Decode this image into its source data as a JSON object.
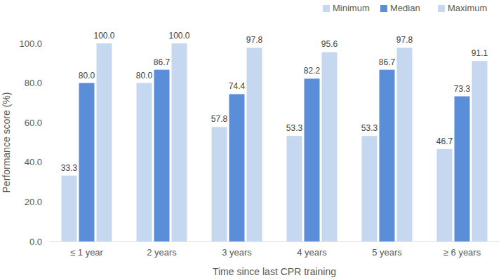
{
  "chart_data": {
    "type": "bar",
    "categories": [
      "≤ 1 year",
      "2 years",
      "3 years",
      "4 years",
      "5 years",
      "≥ 6 years"
    ],
    "series": [
      {
        "name": "Minimum",
        "color": "#c6d7f0",
        "values": [
          33.3,
          80.0,
          57.8,
          53.3,
          53.3,
          46.7
        ],
        "value_labels": [
          "33.3",
          "80.0",
          "57.8",
          "53.3",
          "53.3",
          "46.7"
        ]
      },
      {
        "name": "Median",
        "color": "#5a8ed8",
        "values": [
          80.0,
          86.7,
          74.4,
          82.2,
          86.7,
          73.3
        ],
        "value_labels": [
          "80.0",
          "86.7",
          "74.4",
          "82.2",
          "86.7",
          "73.3"
        ]
      },
      {
        "name": "Maximum",
        "color": "#c6d7f0",
        "values": [
          100.0,
          100.0,
          97.8,
          95.6,
          97.8,
          91.1
        ],
        "value_labels": [
          "100.0",
          "100.0",
          "97.8",
          "95.6",
          "97.8",
          "91.1"
        ]
      }
    ],
    "x_label": "Time since last CPR training",
    "y_label": "Performance score (%)",
    "ylim": [
      0,
      100
    ],
    "yticks": [
      {
        "value": 0,
        "label": "0.0"
      },
      {
        "value": 20,
        "label": "20.0"
      },
      {
        "value": 40,
        "label": "40.0"
      },
      {
        "value": 60,
        "label": "60.0"
      },
      {
        "value": 80,
        "label": "80.0"
      },
      {
        "value": 100,
        "label": "100.0"
      }
    ],
    "grid": false,
    "legend": "top-right",
    "data_labels": true
  }
}
